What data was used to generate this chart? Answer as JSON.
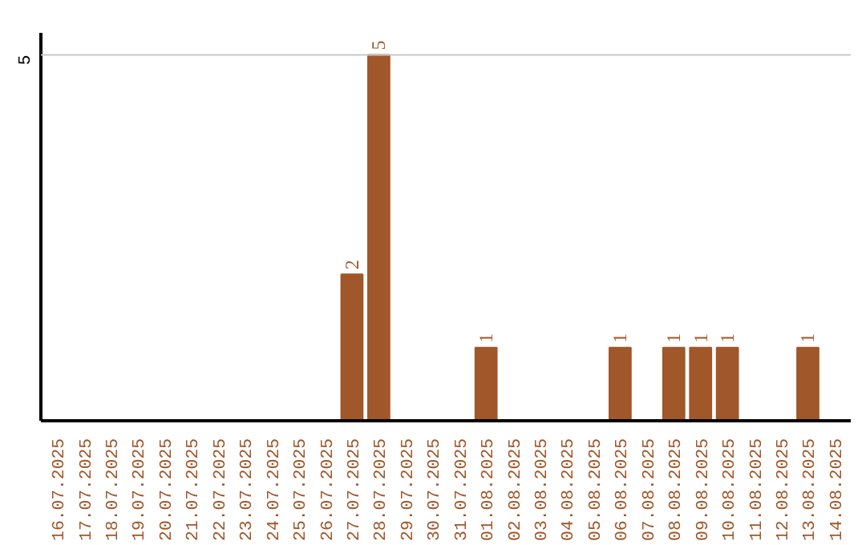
{
  "chart_data": {
    "type": "bar",
    "categories": [
      "16.07.2025",
      "17.07.2025",
      "18.07.2025",
      "19.07.2025",
      "20.07.2025",
      "21.07.2025",
      "22.07.2025",
      "23.07.2025",
      "24.07.2025",
      "25.07.2025",
      "26.07.2025",
      "27.07.2025",
      "28.07.2025",
      "29.07.2025",
      "30.07.2025",
      "31.07.2025",
      "01.08.2025",
      "02.08.2025",
      "03.08.2025",
      "04.08.2025",
      "05.08.2025",
      "06.08.2025",
      "07.08.2025",
      "08.08.2025",
      "09.08.2025",
      "10.08.2025",
      "11.08.2025",
      "12.08.2025",
      "13.08.2025",
      "14.08.2025"
    ],
    "values": [
      0,
      0,
      0,
      0,
      0,
      0,
      0,
      0,
      0,
      0,
      0,
      2,
      5,
      0,
      0,
      0,
      1,
      0,
      0,
      0,
      0,
      1,
      0,
      1,
      1,
      1,
      0,
      0,
      1,
      0
    ],
    "value_labels": [
      null,
      null,
      null,
      null,
      null,
      null,
      null,
      null,
      null,
      null,
      null,
      "2",
      "5",
      null,
      null,
      null,
      "1",
      null,
      null,
      null,
      null,
      "1",
      null,
      "1",
      "1",
      "1",
      null,
      null,
      "1",
      null
    ],
    "color": "#a0572a",
    "ylim": [
      0,
      5.3
    ],
    "ref_lines": [
      {
        "axis": "y",
        "value": 5,
        "label": "5",
        "color": "#c8c8c8"
      }
    ]
  }
}
